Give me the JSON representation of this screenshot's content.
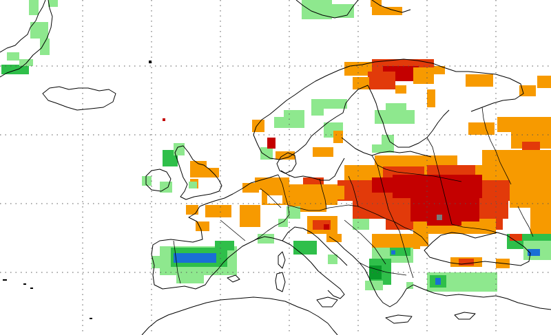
{
  "map": {
    "type": "gridded anomaly map",
    "region": "Europe",
    "background_color": "#ffffff",
    "graticule": {
      "style": "dotted",
      "color": "#555555"
    },
    "coastline_color": "#000000",
    "colors": {
      "dark_red": "#c40000",
      "red": "#e23a0a",
      "orange": "#f79a00",
      "light_green": "#8ee88e",
      "green": "#2fbf4a",
      "dark_green": "#0a9a2a",
      "blue": "#1a6fd6",
      "grey": "#7a7a7a"
    },
    "legend": null,
    "title": null
  }
}
